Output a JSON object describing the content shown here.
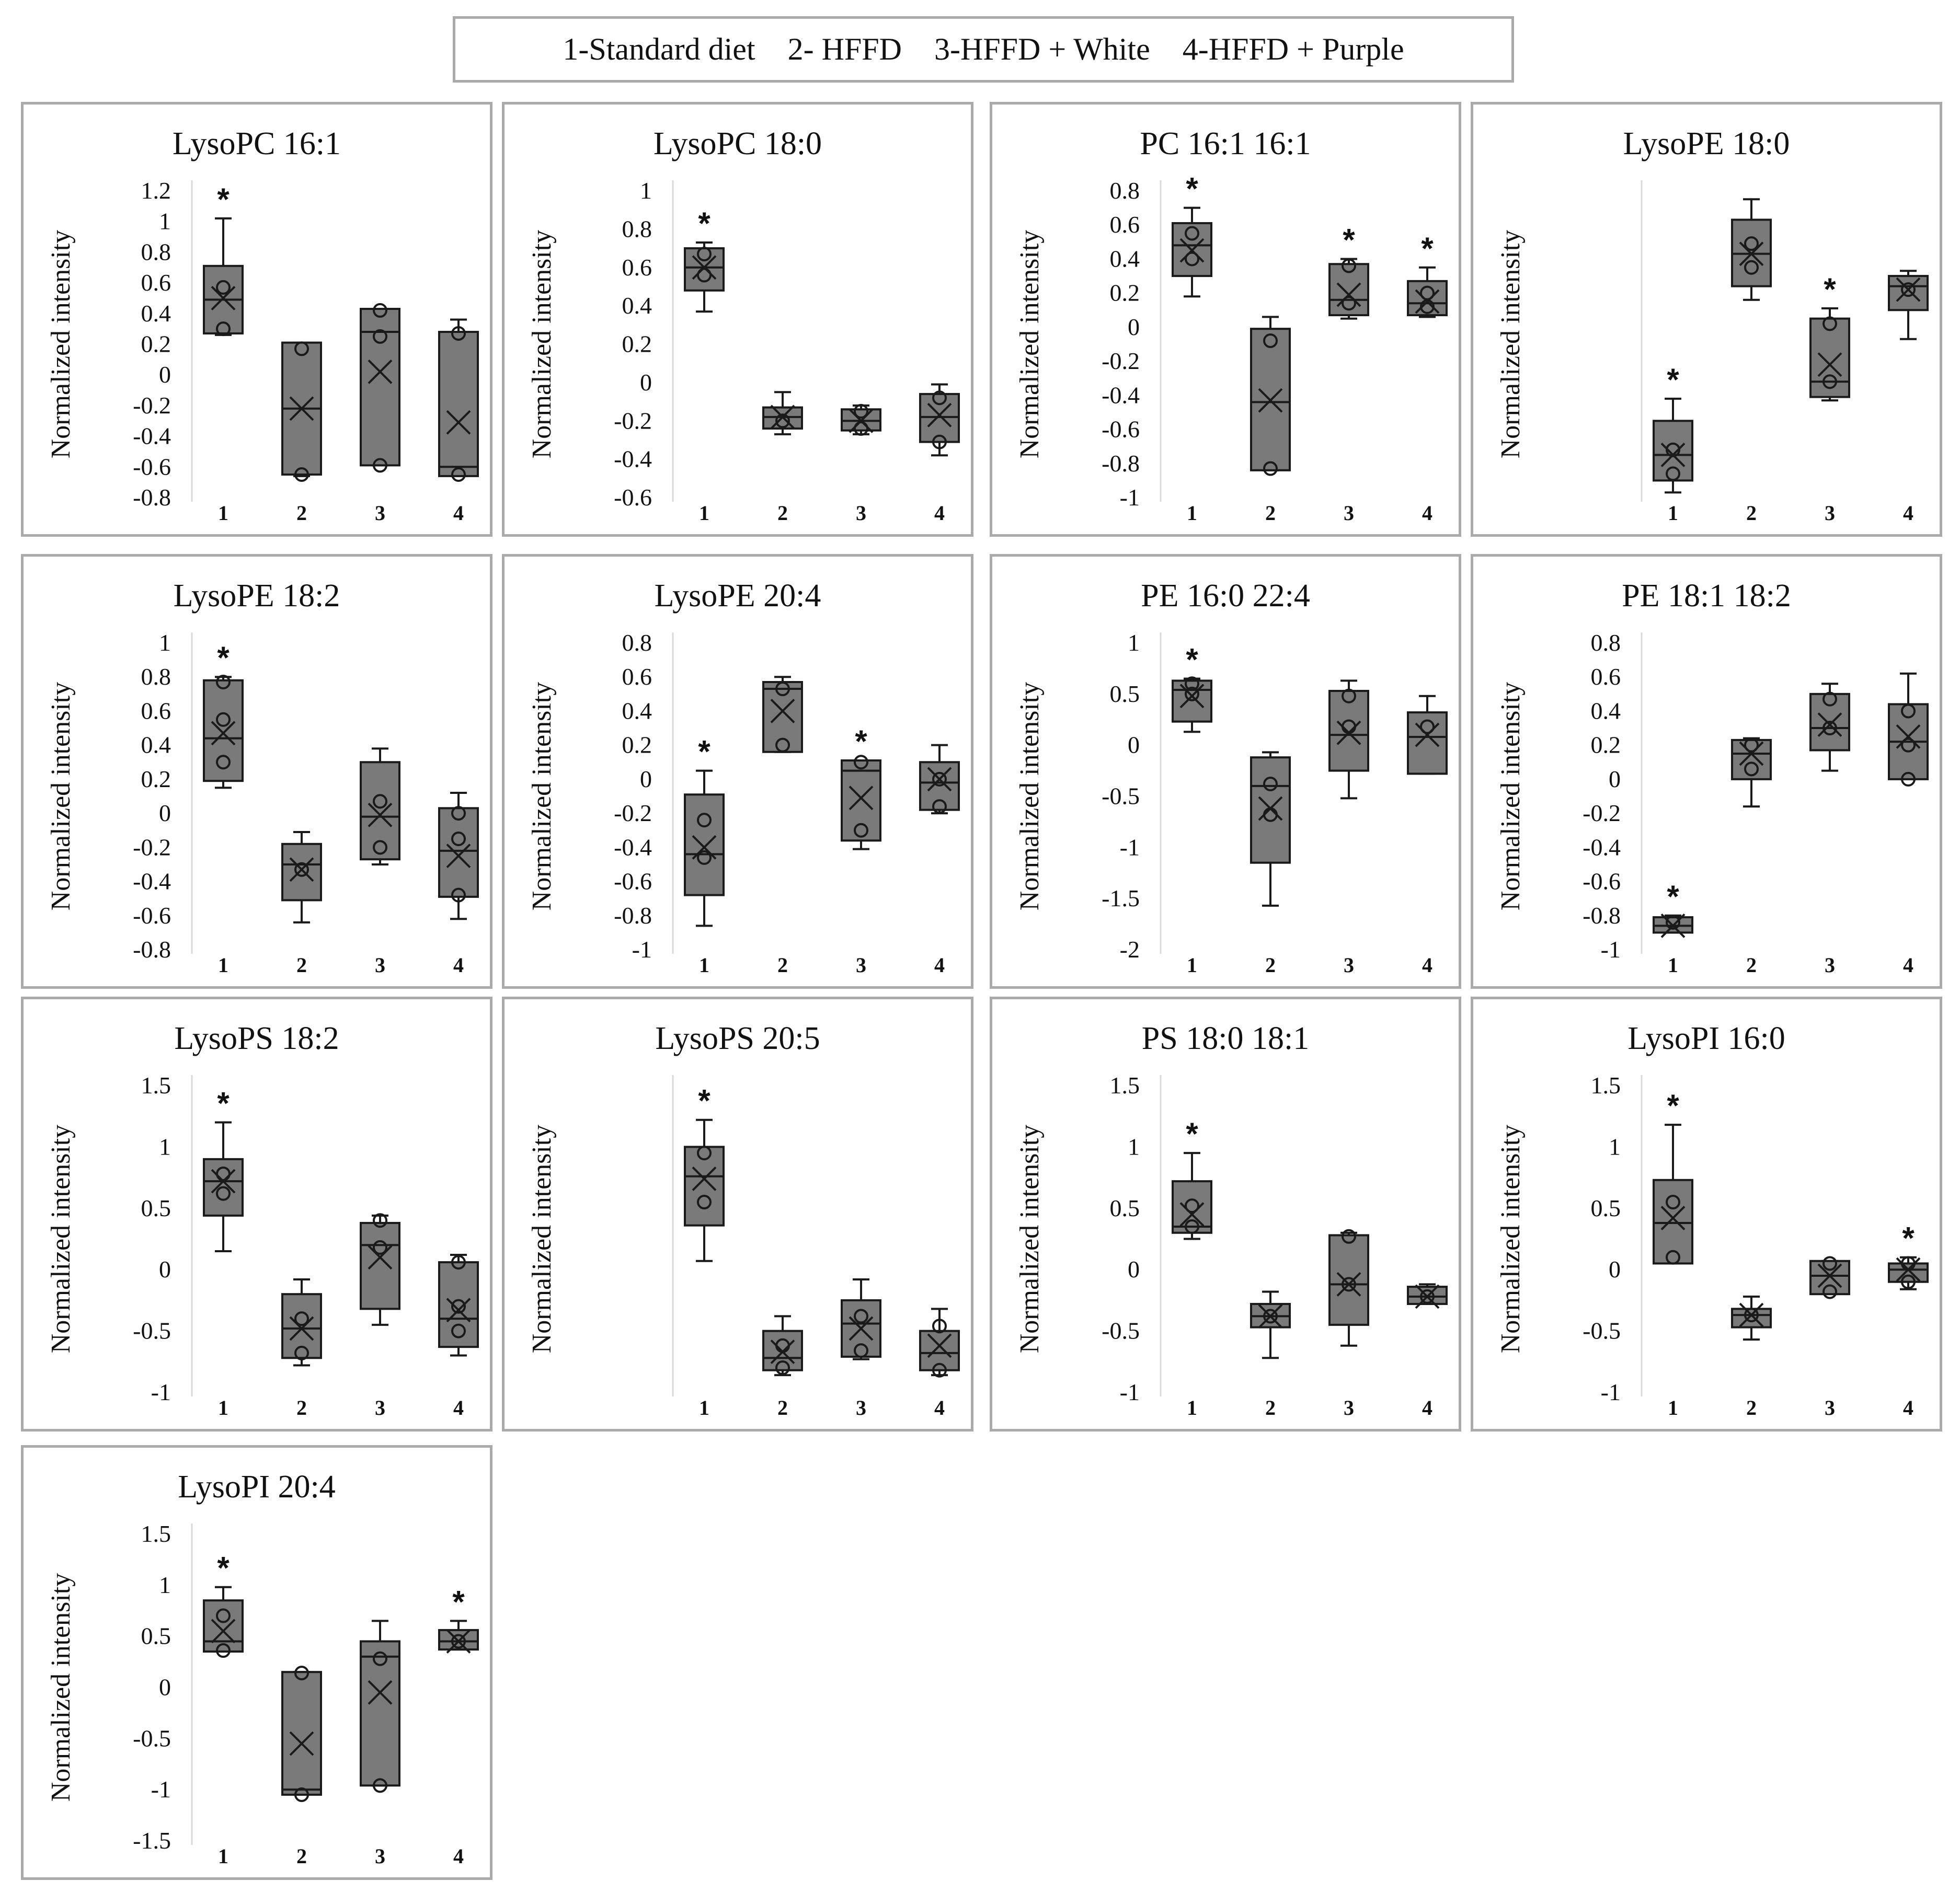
{
  "legend": {
    "item1": "1-Standard diet",
    "item2": "2- HFFD",
    "item3": "3-HFFD + White",
    "item4": "4-HFFD + Purple"
  },
  "colors": {
    "box_fill": "#7a7a7a",
    "box_stroke": "#1a1a1a",
    "panel_border": "#aaaaaa",
    "axis_line": "#d9d9d9"
  },
  "chart_data": [
    {
      "type": "box",
      "title": "LysoPC 16:1",
      "ylabel": "Normalized intensity",
      "ylim": [
        -0.8,
        1.2
      ],
      "yticks": [
        "1.2",
        "1",
        "0.8",
        "0.6",
        "0.4",
        "0.2",
        "0",
        "-0.2",
        "-0.4",
        "-0.6",
        "-0.8"
      ],
      "categories": [
        "1",
        "2",
        "3",
        "4"
      ],
      "boxes": [
        {
          "min": 0.26,
          "q1": 0.27,
          "median": 0.49,
          "q3": 0.71,
          "max": 1.02,
          "mean": 0.5,
          "points": [
            0.57,
            0.3
          ],
          "star": true
        },
        {
          "min": -0.66,
          "q1": -0.65,
          "median": -0.22,
          "q3": 0.21,
          "max": 0.21,
          "mean": -0.22,
          "points": [
            0.17,
            -0.65
          ],
          "star": false
        },
        {
          "min": -0.59,
          "q1": -0.59,
          "median": 0.28,
          "q3": 0.43,
          "max": 0.43,
          "mean": 0.02,
          "points": [
            0.42,
            0.25,
            -0.59
          ],
          "star": false
        },
        {
          "min": -0.66,
          "q1": -0.66,
          "median": -0.6,
          "q3": 0.28,
          "max": 0.36,
          "mean": -0.31,
          "points": [
            0.27,
            -0.65
          ],
          "star": false
        }
      ]
    },
    {
      "type": "box",
      "title": "LysoPC 18:0",
      "ylabel": "Normalized intensity",
      "ylim": [
        -0.6,
        1
      ],
      "yticks": [
        "1",
        "0.8",
        "0.6",
        "0.4",
        "0.2",
        "0",
        "-0.2",
        "-0.4",
        "-0.6"
      ],
      "categories": [
        "1",
        "2",
        "3",
        "4"
      ],
      "boxes": [
        {
          "min": 0.37,
          "q1": 0.48,
          "median": 0.6,
          "q3": 0.7,
          "max": 0.73,
          "mean": 0.6,
          "points": [
            0.67,
            0.56
          ],
          "star": true
        },
        {
          "min": -0.27,
          "q1": -0.24,
          "median": -0.18,
          "q3": -0.13,
          "max": -0.05,
          "mean": -0.18,
          "points": [
            -0.2
          ],
          "star": false
        },
        {
          "min": -0.27,
          "q1": -0.25,
          "median": -0.2,
          "q3": -0.14,
          "max": -0.12,
          "mean": -0.2,
          "points": [
            -0.15,
            -0.24
          ],
          "star": false
        },
        {
          "min": -0.38,
          "q1": -0.31,
          "median": -0.18,
          "q3": -0.06,
          "max": -0.01,
          "mean": -0.17,
          "points": [
            -0.08,
            -0.31
          ],
          "star": false
        }
      ]
    },
    {
      "type": "box",
      "title": "PC 16:1 16:1",
      "ylabel": "Normalized intensity",
      "ylim": [
        -1,
        0.8
      ],
      "yticks": [
        "0.8",
        "0.6",
        "0.4",
        "0.2",
        "0",
        "-0.2",
        "-0.4",
        "-0.6",
        "-0.8",
        "-1"
      ],
      "categories": [
        "1",
        "2",
        "3",
        "4"
      ],
      "boxes": [
        {
          "min": 0.18,
          "q1": 0.3,
          "median": 0.48,
          "q3": 0.61,
          "max": 0.7,
          "mean": 0.45,
          "points": [
            0.55,
            0.4
          ],
          "star": true
        },
        {
          "min": -0.84,
          "q1": -0.84,
          "median": -0.44,
          "q3": -0.01,
          "max": 0.06,
          "mean": -0.43,
          "points": [
            -0.08,
            -0.83
          ],
          "star": false
        },
        {
          "min": 0.05,
          "q1": 0.07,
          "median": 0.16,
          "q3": 0.37,
          "max": 0.4,
          "mean": 0.19,
          "points": [
            0.36,
            0.14
          ],
          "star": true
        },
        {
          "min": 0.06,
          "q1": 0.07,
          "median": 0.14,
          "q3": 0.27,
          "max": 0.35,
          "mean": 0.15,
          "points": [
            0.2,
            0.12
          ],
          "star": true
        }
      ]
    },
    {
      "type": "box",
      "title": "LysoPE 18:0",
      "ylabel": "Normalized intensity",
      "ylim": [
        -1,
        0.8
      ],
      "yticks": [],
      "categories": [
        "1",
        "2",
        "3",
        "4"
      ],
      "boxes": [
        {
          "min": -0.97,
          "q1": -0.9,
          "median": -0.75,
          "q3": -0.55,
          "max": -0.42,
          "mean": -0.75,
          "points": [
            -0.72,
            -0.86
          ],
          "star": true
        },
        {
          "min": 0.16,
          "q1": 0.24,
          "median": 0.43,
          "q3": 0.63,
          "max": 0.75,
          "mean": 0.43,
          "points": [
            0.49,
            0.35
          ],
          "star": false
        },
        {
          "min": -0.43,
          "q1": -0.41,
          "median": -0.32,
          "q3": 0.05,
          "max": 0.11,
          "mean": -0.22,
          "points": [
            0.02,
            -0.32
          ],
          "star": true
        },
        {
          "min": -0.07,
          "q1": 0.1,
          "median": 0.24,
          "q3": 0.3,
          "max": 0.33,
          "mean": 0.22,
          "points": [
            0.22
          ],
          "star": false
        }
      ]
    },
    {
      "type": "box",
      "title": "LysoPE 18:2",
      "ylabel": "Normalized intensity",
      "ylim": [
        -0.8,
        1
      ],
      "yticks": [
        "1",
        "0.8",
        "0.6",
        "0.4",
        "0.2",
        "0",
        "-0.2",
        "-0.4",
        "-0.6",
        "-0.8"
      ],
      "categories": [
        "1",
        "2",
        "3",
        "4"
      ],
      "boxes": [
        {
          "min": 0.15,
          "q1": 0.19,
          "median": 0.44,
          "q3": 0.78,
          "max": 0.8,
          "mean": 0.47,
          "points": [
            0.77,
            0.55,
            0.3
          ],
          "star": true
        },
        {
          "min": -0.64,
          "q1": -0.51,
          "median": -0.3,
          "q3": -0.18,
          "max": -0.11,
          "mean": -0.33,
          "points": [
            -0.33
          ],
          "star": false
        },
        {
          "min": -0.3,
          "q1": -0.27,
          "median": -0.02,
          "q3": 0.3,
          "max": 0.38,
          "mean": -0.01,
          "points": [
            0.07,
            -0.2
          ],
          "star": false
        },
        {
          "min": -0.62,
          "q1": -0.49,
          "median": -0.22,
          "q3": 0.03,
          "max": 0.12,
          "mean": -0.25,
          "points": [
            0.0,
            -0.15,
            -0.48
          ],
          "star": false
        }
      ]
    },
    {
      "type": "box",
      "title": "LysoPE 20:4",
      "ylabel": "Normalized intensity",
      "ylim": [
        -1,
        0.8
      ],
      "yticks": [
        "0.8",
        "0.6",
        "0.4",
        "0.2",
        "0",
        "-0.2",
        "-0.4",
        "-0.6",
        "-0.8",
        "-1"
      ],
      "categories": [
        "1",
        "2",
        "3",
        "4"
      ],
      "boxes": [
        {
          "min": -0.86,
          "q1": -0.68,
          "median": -0.44,
          "q3": -0.09,
          "max": 0.05,
          "mean": -0.4,
          "points": [
            -0.24,
            -0.46
          ],
          "star": true
        },
        {
          "min": 0.16,
          "q1": 0.16,
          "median": 0.53,
          "q3": 0.57,
          "max": 0.6,
          "mean": 0.4,
          "points": [
            0.53,
            0.2
          ],
          "star": false
        },
        {
          "min": -0.41,
          "q1": -0.36,
          "median": 0.05,
          "q3": 0.11,
          "max": 0.11,
          "mean": -0.11,
          "points": [
            0.1,
            -0.3
          ],
          "star": true
        },
        {
          "min": -0.2,
          "q1": -0.18,
          "median": -0.02,
          "q3": 0.1,
          "max": 0.2,
          "mean": 0.0,
          "points": [
            0.0,
            -0.16
          ],
          "star": false
        }
      ]
    },
    {
      "type": "box",
      "title": "PE 16:0 22:4",
      "ylabel": "Normalized intensity",
      "ylim": [
        -2,
        1
      ],
      "yticks": [
        "1",
        "0.5",
        "0",
        "-0.5",
        "-1",
        "-1.5",
        "-2"
      ],
      "categories": [
        "1",
        "2",
        "3",
        "4"
      ],
      "boxes": [
        {
          "min": 0.13,
          "q1": 0.23,
          "median": 0.54,
          "q3": 0.63,
          "max": 0.65,
          "mean": 0.48,
          "points": [
            0.6,
            0.5
          ],
          "star": true
        },
        {
          "min": -1.57,
          "q1": -1.15,
          "median": -0.4,
          "q3": -0.12,
          "max": -0.07,
          "mean": -0.62,
          "points": [
            -0.38,
            -0.68
          ],
          "star": false
        },
        {
          "min": -0.52,
          "q1": -0.25,
          "median": 0.1,
          "q3": 0.53,
          "max": 0.63,
          "mean": 0.12,
          "points": [
            0.48,
            0.18
          ],
          "star": false
        },
        {
          "min": -0.28,
          "q1": -0.28,
          "median": 0.08,
          "q3": 0.32,
          "max": 0.48,
          "mean": 0.1,
          "points": [
            0.18
          ],
          "star": false
        }
      ]
    },
    {
      "type": "box",
      "title": "PE 18:1 18:2",
      "ylabel": "Normalized intensity",
      "ylim": [
        -1,
        0.8
      ],
      "yticks": [
        "0.8",
        "0.6",
        "0.4",
        "0.2",
        "0",
        "-0.2",
        "-0.4",
        "-0.6",
        "-0.8",
        "-1"
      ],
      "categories": [
        "1",
        "2",
        "3",
        "4"
      ],
      "boxes": [
        {
          "min": -0.9,
          "q1": -0.9,
          "median": -0.86,
          "q3": -0.81,
          "max": -0.8,
          "mean": -0.86,
          "points": [
            -0.84
          ],
          "star": true
        },
        {
          "min": -0.16,
          "q1": 0.0,
          "median": 0.15,
          "q3": 0.23,
          "max": 0.24,
          "mean": 0.15,
          "points": [
            0.2,
            0.06
          ],
          "star": false
        },
        {
          "min": 0.05,
          "q1": 0.17,
          "median": 0.3,
          "q3": 0.5,
          "max": 0.56,
          "mean": 0.32,
          "points": [
            0.47,
            0.3
          ],
          "star": false
        },
        {
          "min": 0.0,
          "q1": 0.0,
          "median": 0.22,
          "q3": 0.44,
          "max": 0.62,
          "mean": 0.25,
          "points": [
            0.4,
            0.2,
            0.0
          ],
          "star": false
        }
      ]
    },
    {
      "type": "box",
      "title": "LysoPS 18:2",
      "ylabel": "Normalized intensity",
      "ylim": [
        -1,
        1.5
      ],
      "yticks": [
        "1.5",
        "1",
        "0.5",
        "0",
        "-0.5",
        "-1"
      ],
      "categories": [
        "1",
        "2",
        "3",
        "4"
      ],
      "boxes": [
        {
          "min": 0.15,
          "q1": 0.44,
          "median": 0.72,
          "q3": 0.9,
          "max": 1.2,
          "mean": 0.72,
          "points": [
            0.78,
            0.62
          ],
          "star": true
        },
        {
          "min": -0.78,
          "q1": -0.72,
          "median": -0.48,
          "q3": -0.2,
          "max": -0.08,
          "mean": -0.48,
          "points": [
            -0.4,
            -0.68
          ],
          "star": false
        },
        {
          "min": -0.45,
          "q1": -0.32,
          "median": 0.2,
          "q3": 0.38,
          "max": 0.44,
          "mean": 0.1,
          "points": [
            0.4,
            0.18
          ],
          "star": false
        },
        {
          "min": -0.7,
          "q1": -0.63,
          "median": -0.4,
          "q3": 0.06,
          "max": 0.12,
          "mean": -0.33,
          "points": [
            0.06,
            -0.5,
            -0.3
          ],
          "star": false
        }
      ]
    },
    {
      "type": "box",
      "title": "LysoPS 20:5",
      "ylabel": "Normalized intensity",
      "ylim": [
        -1,
        1.5
      ],
      "yticks": [],
      "categories": [
        "1",
        "2",
        "3",
        "4"
      ],
      "boxes": [
        {
          "min": 0.07,
          "q1": 0.36,
          "median": 0.76,
          "q3": 1.0,
          "max": 1.22,
          "mean": 0.74,
          "points": [
            0.95,
            0.55
          ],
          "star": true
        },
        {
          "min": -0.86,
          "q1": -0.82,
          "median": -0.72,
          "q3": -0.5,
          "max": -0.38,
          "mean": -0.67,
          "points": [
            -0.62,
            -0.8
          ],
          "star": false
        },
        {
          "min": -0.73,
          "q1": -0.71,
          "median": -0.44,
          "q3": -0.25,
          "max": -0.08,
          "mean": -0.48,
          "points": [
            -0.38,
            -0.66
          ],
          "star": false
        },
        {
          "min": -0.86,
          "q1": -0.82,
          "median": -0.68,
          "q3": -0.5,
          "max": -0.32,
          "mean": -0.62,
          "points": [
            -0.46,
            -0.82
          ],
          "star": false
        }
      ]
    },
    {
      "type": "box",
      "title": "PS 18:0 18:1",
      "ylabel": "Normalized intensity",
      "ylim": [
        -1,
        1.5
      ],
      "yticks": [
        "1.5",
        "1",
        "0.5",
        "0",
        "-0.5",
        "-1"
      ],
      "categories": [
        "1",
        "2",
        "3",
        "4"
      ],
      "boxes": [
        {
          "min": 0.25,
          "q1": 0.3,
          "median": 0.35,
          "q3": 0.72,
          "max": 0.95,
          "mean": 0.45,
          "points": [
            0.52,
            0.35
          ],
          "star": true
        },
        {
          "min": -0.72,
          "q1": -0.47,
          "median": -0.38,
          "q3": -0.28,
          "max": -0.18,
          "mean": -0.38,
          "points": [
            -0.38
          ],
          "star": false
        },
        {
          "min": -0.62,
          "q1": -0.45,
          "median": -0.12,
          "q3": 0.28,
          "max": 0.3,
          "mean": -0.12,
          "points": [
            0.27,
            -0.12
          ],
          "star": false
        },
        {
          "min": -0.28,
          "q1": -0.28,
          "median": -0.22,
          "q3": -0.14,
          "max": -0.12,
          "mean": -0.22,
          "points": [
            -0.22
          ],
          "star": false
        }
      ]
    },
    {
      "type": "box",
      "title": "LysoPI 16:0",
      "ylabel": "Normalized intensity",
      "ylim": [
        -1,
        1.5
      ],
      "yticks": [
        "1.5",
        "1",
        "0.5",
        "0",
        "-0.5",
        "-1"
      ],
      "categories": [
        "1",
        "2",
        "3",
        "4"
      ],
      "boxes": [
        {
          "min": 0.05,
          "q1": 0.05,
          "median": 0.38,
          "q3": 0.73,
          "max": 1.18,
          "mean": 0.42,
          "points": [
            0.55,
            0.1
          ],
          "star": true
        },
        {
          "min": -0.57,
          "q1": -0.47,
          "median": -0.37,
          "q3": -0.32,
          "max": -0.22,
          "mean": -0.37,
          "points": [
            -0.37
          ],
          "star": false
        },
        {
          "min": -0.2,
          "q1": -0.2,
          "median": -0.05,
          "q3": 0.07,
          "max": 0.07,
          "mean": -0.05,
          "points": [
            0.05,
            -0.18
          ],
          "star": false
        },
        {
          "min": -0.16,
          "q1": -0.1,
          "median": 0.0,
          "q3": 0.05,
          "max": 0.1,
          "mean": 0.0,
          "points": [
            0.05,
            -0.1
          ],
          "star": true
        }
      ]
    },
    {
      "type": "box",
      "title": "LysoPI 20:4",
      "ylabel": "Normalized intensity",
      "ylim": [
        -1.5,
        1.5
      ],
      "yticks": [
        "1.5",
        "1",
        "0.5",
        "0",
        "-0.5",
        "-1",
        "-1.5"
      ],
      "categories": [
        "1",
        "2",
        "3",
        "4"
      ],
      "boxes": [
        {
          "min": 0.35,
          "q1": 0.35,
          "median": 0.45,
          "q3": 0.85,
          "max": 0.98,
          "mean": 0.55,
          "points": [
            0.7,
            0.36
          ],
          "star": true
        },
        {
          "min": -1.05,
          "q1": -1.05,
          "median": -1.0,
          "q3": 0.15,
          "max": 0.15,
          "mean": -0.55,
          "points": [
            0.14,
            -1.05
          ],
          "star": false
        },
        {
          "min": -0.96,
          "q1": -0.96,
          "median": 0.3,
          "q3": 0.45,
          "max": 0.65,
          "mean": -0.05,
          "points": [
            0.28,
            -0.96
          ],
          "star": false
        },
        {
          "min": 0.37,
          "q1": 0.37,
          "median": 0.45,
          "q3": 0.56,
          "max": 0.65,
          "mean": 0.45,
          "points": [
            0.45
          ],
          "star": true
        }
      ]
    }
  ]
}
